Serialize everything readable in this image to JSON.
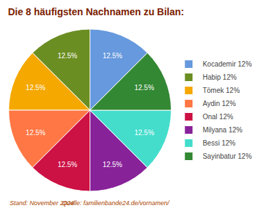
{
  "chart_data": {
    "type": "pie",
    "title": "Die 8 häufigsten Nachnamen zu Bilan:",
    "categories": [
      "Kocademir 12%",
      "Habip 12%",
      "Tömek 12%",
      "Aydin 12%",
      "Onal 12%",
      "Milyana 12%",
      "Bessi 12%",
      "Sayinbatur 12%"
    ],
    "values": [
      12.5,
      12.5,
      12.5,
      12.5,
      12.5,
      12.5,
      12.5,
      12.5
    ],
    "value_labels": [
      "12.5%",
      "12.5%",
      "12.5%",
      "12.5%",
      "12.5%",
      "12.5%",
      "12.5%",
      "12.5%"
    ],
    "colors": [
      "#6699dd",
      "#6b8e23",
      "#f5a800",
      "#ff7744",
      "#cc1144",
      "#882299",
      "#44ddcc",
      "#338833"
    ],
    "data_labels": true,
    "legend": "right",
    "annotations": [
      "Stand: November 2024",
      "Quelle: familienbande24.de/vornamen/"
    ]
  }
}
